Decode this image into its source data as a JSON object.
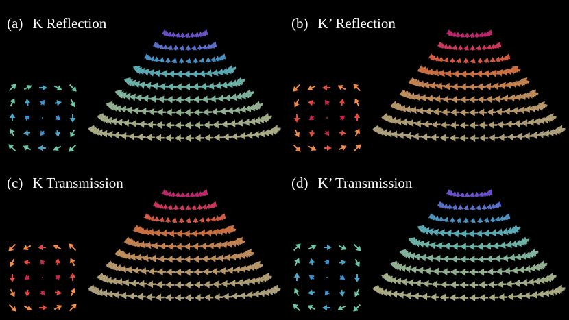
{
  "panels": [
    {
      "label": "(a)",
      "title": "K Reflection"
    },
    {
      "label": "(b)",
      "title": "K’ Reflection"
    },
    {
      "label": "(c)",
      "title": "K Transmission"
    },
    {
      "label": "(d)",
      "title": "K’ Transmission"
    }
  ]
}
